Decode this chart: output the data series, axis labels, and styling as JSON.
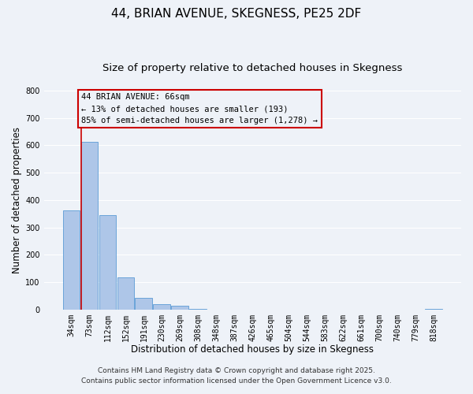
{
  "title": "44, BRIAN AVENUE, SKEGNESS, PE25 2DF",
  "subtitle": "Size of property relative to detached houses in Skegness",
  "xlabel": "Distribution of detached houses by size in Skegness",
  "ylabel": "Number of detached properties",
  "bar_labels": [
    "34sqm",
    "73sqm",
    "112sqm",
    "152sqm",
    "191sqm",
    "230sqm",
    "269sqm",
    "308sqm",
    "348sqm",
    "387sqm",
    "426sqm",
    "465sqm",
    "504sqm",
    "544sqm",
    "583sqm",
    "622sqm",
    "661sqm",
    "700sqm",
    "740sqm",
    "779sqm",
    "818sqm"
  ],
  "bar_values": [
    362,
    614,
    345,
    116,
    42,
    20,
    13,
    3,
    0,
    0,
    0,
    0,
    0,
    0,
    0,
    0,
    0,
    0,
    0,
    0,
    2
  ],
  "bar_color": "#aec6e8",
  "bar_edge_color": "#5b9bd5",
  "annotation_text_line1": "44 BRIAN AVENUE: 66sqm",
  "annotation_text_line2": "← 13% of detached houses are smaller (193)",
  "annotation_text_line3": "85% of semi-detached houses are larger (1,278) →",
  "annotation_box_color": "#cc0000",
  "vline_color": "#cc0000",
  "ylim": [
    0,
    800
  ],
  "yticks": [
    0,
    100,
    200,
    300,
    400,
    500,
    600,
    700,
    800
  ],
  "footnote1": "Contains HM Land Registry data © Crown copyright and database right 2025.",
  "footnote2": "Contains public sector information licensed under the Open Government Licence v3.0.",
  "bg_color": "#eef2f8",
  "grid_color": "#ffffff",
  "title_fontsize": 11,
  "subtitle_fontsize": 9.5,
  "axis_label_fontsize": 8.5,
  "tick_fontsize": 7,
  "annotation_fontsize": 7.5,
  "footnote_fontsize": 6.5
}
